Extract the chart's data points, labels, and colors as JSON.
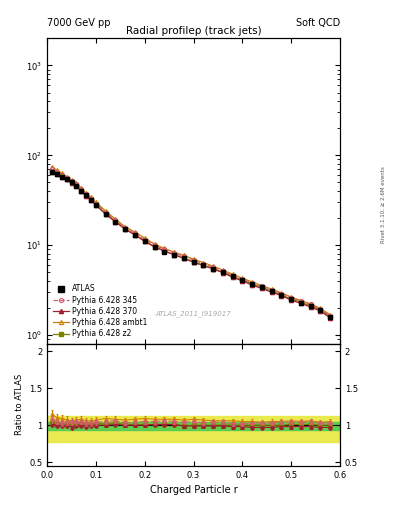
{
  "title_main": "Radial profileρ (track jets)",
  "header_left": "7000 GeV pp",
  "header_right": "Soft QCD",
  "watermark": "ATLAS_2011_I919017",
  "right_label": "Rivet 3.1.10, ≥ 2.6M events",
  "xlabel": "Charged Particle r",
  "ylabel_ratio": "Ratio to ATLAS",
  "xlim": [
    0.0,
    0.6
  ],
  "ylim_main": [
    0.8,
    2000
  ],
  "ylim_ratio": [
    0.45,
    2.1
  ],
  "ratio_yticks": [
    0.5,
    1.0,
    1.5,
    2.0
  ],
  "x": [
    0.01,
    0.02,
    0.03,
    0.04,
    0.05,
    0.06,
    0.07,
    0.08,
    0.09,
    0.1,
    0.12,
    0.14,
    0.16,
    0.18,
    0.2,
    0.22,
    0.24,
    0.26,
    0.28,
    0.3,
    0.32,
    0.34,
    0.36,
    0.38,
    0.4,
    0.42,
    0.44,
    0.46,
    0.48,
    0.5,
    0.52,
    0.54,
    0.56,
    0.58
  ],
  "atlas_y": [
    65,
    62,
    58,
    54,
    50,
    46,
    40,
    36,
    32,
    28,
    22,
    18,
    15,
    13,
    11,
    9.5,
    8.5,
    7.8,
    7.2,
    6.5,
    6.0,
    5.5,
    5.0,
    4.5,
    4.1,
    3.7,
    3.4,
    3.1,
    2.8,
    2.5,
    2.3,
    2.1,
    1.9,
    1.6
  ],
  "atlas_yerr": [
    3,
    3,
    2.5,
    2.5,
    2,
    2,
    1.8,
    1.6,
    1.4,
    1.2,
    1.0,
    0.8,
    0.7,
    0.6,
    0.5,
    0.45,
    0.4,
    0.37,
    0.34,
    0.31,
    0.28,
    0.26,
    0.24,
    0.21,
    0.19,
    0.18,
    0.16,
    0.15,
    0.13,
    0.12,
    0.11,
    0.1,
    0.09,
    0.08
  ],
  "py345_y": [
    70,
    65,
    60,
    56,
    52,
    48,
    42,
    37,
    33,
    29,
    23,
    19,
    15.5,
    13.5,
    11.5,
    10.0,
    9.0,
    8.2,
    7.5,
    6.8,
    6.2,
    5.7,
    5.2,
    4.6,
    4.2,
    3.8,
    3.5,
    3.2,
    2.9,
    2.6,
    2.4,
    2.2,
    1.95,
    1.65
  ],
  "py370_y": [
    66,
    62,
    58,
    54,
    49,
    46,
    40,
    35.5,
    32,
    28,
    22,
    18.2,
    15.0,
    13.0,
    11.0,
    9.6,
    8.6,
    7.85,
    7.15,
    6.45,
    5.95,
    5.45,
    4.95,
    4.4,
    4.0,
    3.6,
    3.3,
    3.0,
    2.75,
    2.45,
    2.25,
    2.05,
    1.85,
    1.55
  ],
  "pyambt1_y": [
    75,
    68,
    63,
    58,
    53,
    49,
    43,
    38,
    34,
    30,
    24,
    19.5,
    16,
    14,
    12,
    10.3,
    9.2,
    8.4,
    7.7,
    7.0,
    6.4,
    5.85,
    5.3,
    4.75,
    4.3,
    3.9,
    3.55,
    3.25,
    2.95,
    2.65,
    2.42,
    2.22,
    1.98,
    1.68
  ],
  "pyz2_y": [
    67,
    63,
    59,
    55,
    50.5,
    46.5,
    40.5,
    36.5,
    32.5,
    28.5,
    22.5,
    18.5,
    15.2,
    13.1,
    11.1,
    9.6,
    8.6,
    7.85,
    7.15,
    6.5,
    6.0,
    5.5,
    5.0,
    4.5,
    4.1,
    3.7,
    3.4,
    3.1,
    2.8,
    2.52,
    2.32,
    2.12,
    1.9,
    1.6
  ],
  "color_atlas": "#000000",
  "color_py345": "#d06070",
  "color_py370": "#a02030",
  "color_pyambt1": "#d08000",
  "color_pyz2": "#808000",
  "band_green": [
    "#60cc60",
    0.85
  ],
  "band_yellow": [
    "#e8e840",
    0.85
  ],
  "band_green_lo": 0.93,
  "band_green_hi": 1.04,
  "band_yellow_lo": 0.77,
  "band_yellow_hi": 1.12,
  "ratio_py345": [
    1.08,
    1.05,
    1.03,
    1.04,
    1.04,
    1.04,
    1.05,
    1.03,
    1.03,
    1.04,
    1.05,
    1.06,
    1.03,
    1.04,
    1.05,
    1.05,
    1.06,
    1.05,
    1.04,
    1.05,
    1.03,
    1.04,
    1.04,
    1.02,
    1.02,
    1.03,
    1.03,
    1.03,
    1.04,
    1.04,
    1.04,
    1.05,
    1.03,
    1.03
  ],
  "ratio_py370": [
    1.02,
    1.0,
    1.0,
    1.0,
    0.98,
    1.0,
    1.0,
    0.99,
    1.0,
    1.0,
    1.0,
    1.01,
    1.0,
    1.0,
    1.0,
    1.01,
    1.01,
    1.01,
    0.99,
    0.99,
    0.99,
    0.99,
    0.99,
    0.98,
    0.98,
    0.97,
    0.97,
    0.97,
    0.98,
    0.98,
    0.98,
    0.98,
    0.97,
    0.97
  ],
  "ratio_pyambt1": [
    1.15,
    1.1,
    1.09,
    1.07,
    1.06,
    1.07,
    1.08,
    1.06,
    1.06,
    1.07,
    1.09,
    1.08,
    1.07,
    1.08,
    1.09,
    1.08,
    1.08,
    1.08,
    1.07,
    1.08,
    1.07,
    1.06,
    1.06,
    1.06,
    1.05,
    1.05,
    1.04,
    1.05,
    1.05,
    1.06,
    1.05,
    1.06,
    1.04,
    1.05
  ],
  "ratio_pyz2": [
    1.03,
    1.02,
    1.02,
    1.02,
    1.01,
    1.01,
    1.01,
    1.01,
    1.02,
    1.02,
    1.02,
    1.03,
    1.01,
    1.01,
    1.01,
    1.01,
    1.01,
    1.01,
    0.99,
    1.0,
    1.0,
    1.0,
    1.0,
    1.0,
    1.0,
    1.0,
    1.0,
    1.0,
    1.0,
    1.01,
    1.01,
    1.01,
    1.0,
    1.0
  ],
  "ratio_py345_yerr": [
    0.05,
    0.04,
    0.04,
    0.04,
    0.04,
    0.04,
    0.04,
    0.04,
    0.04,
    0.04,
    0.03,
    0.03,
    0.03,
    0.03,
    0.03,
    0.03,
    0.03,
    0.03,
    0.03,
    0.03,
    0.03,
    0.03,
    0.03,
    0.03,
    0.03,
    0.03,
    0.03,
    0.03,
    0.03,
    0.03,
    0.03,
    0.03,
    0.03,
    0.03
  ],
  "ratio_py370_yerr": [
    0.05,
    0.04,
    0.04,
    0.04,
    0.04,
    0.04,
    0.04,
    0.04,
    0.04,
    0.04,
    0.03,
    0.03,
    0.03,
    0.03,
    0.03,
    0.03,
    0.03,
    0.03,
    0.03,
    0.03,
    0.03,
    0.03,
    0.03,
    0.03,
    0.03,
    0.03,
    0.03,
    0.03,
    0.03,
    0.03,
    0.03,
    0.03,
    0.03,
    0.03
  ],
  "ratio_pyambt1_yerr": [
    0.06,
    0.05,
    0.05,
    0.05,
    0.04,
    0.04,
    0.04,
    0.04,
    0.04,
    0.04,
    0.04,
    0.04,
    0.03,
    0.03,
    0.03,
    0.03,
    0.03,
    0.03,
    0.03,
    0.03,
    0.03,
    0.03,
    0.03,
    0.03,
    0.03,
    0.03,
    0.03,
    0.03,
    0.03,
    0.03,
    0.03,
    0.03,
    0.03,
    0.03
  ],
  "ratio_pyz2_yerr": [
    0.05,
    0.04,
    0.04,
    0.04,
    0.04,
    0.04,
    0.04,
    0.04,
    0.04,
    0.04,
    0.03,
    0.03,
    0.03,
    0.03,
    0.03,
    0.03,
    0.03,
    0.03,
    0.03,
    0.03,
    0.03,
    0.03,
    0.03,
    0.03,
    0.03,
    0.03,
    0.03,
    0.03,
    0.03,
    0.03,
    0.03,
    0.03,
    0.03,
    0.03
  ]
}
